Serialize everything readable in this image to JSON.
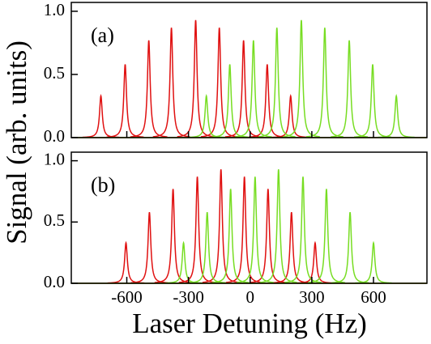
{
  "chart_data": [
    {
      "type": "line",
      "panel_label": "(a)",
      "ylabel": "Signal (arb. units)",
      "xlim": [
        -870,
        860
      ],
      "ylim": [
        0,
        1.07
      ],
      "yticks": [
        0.0,
        0.5,
        1.0
      ],
      "series": [
        {
          "color": "#e01010",
          "x": [
            -726,
            -608,
            -493,
            -383,
            -265,
            -150,
            -32,
            83,
            197
          ],
          "values": [
            0.33,
            0.58,
            0.77,
            0.87,
            0.93,
            0.87,
            0.77,
            0.58,
            0.33
          ]
        },
        {
          "color": "#77dd22",
          "x": [
            -213,
            -99,
            16,
            130,
            249,
            363,
            482,
            596,
            711
          ],
          "values": [
            0.33,
            0.58,
            0.77,
            0.87,
            0.93,
            0.87,
            0.77,
            0.58,
            0.33
          ]
        }
      ]
    },
    {
      "type": "line",
      "panel_label": "(b)",
      "xlabel": "Laser Detuning (Hz)",
      "xlim": [
        -870,
        860
      ],
      "ylim": [
        0,
        1.07
      ],
      "yticks": [
        0.0,
        0.5,
        1.0
      ],
      "xticks": [
        -600,
        -300,
        0,
        300,
        600
      ],
      "series": [
        {
          "color": "#e01010",
          "x": [
            -604,
            -490,
            -375,
            -257,
            -142,
            -28,
            87,
            201,
            316
          ],
          "values": [
            0.33,
            0.58,
            0.77,
            0.87,
            0.93,
            0.87,
            0.77,
            0.58,
            0.33
          ]
        },
        {
          "color": "#77dd22",
          "x": [
            -324,
            -209,
            -95,
            24,
            138,
            257,
            371,
            486,
            600
          ],
          "values": [
            0.33,
            0.58,
            0.77,
            0.87,
            0.93,
            0.87,
            0.77,
            0.58,
            0.33
          ]
        }
      ]
    }
  ]
}
